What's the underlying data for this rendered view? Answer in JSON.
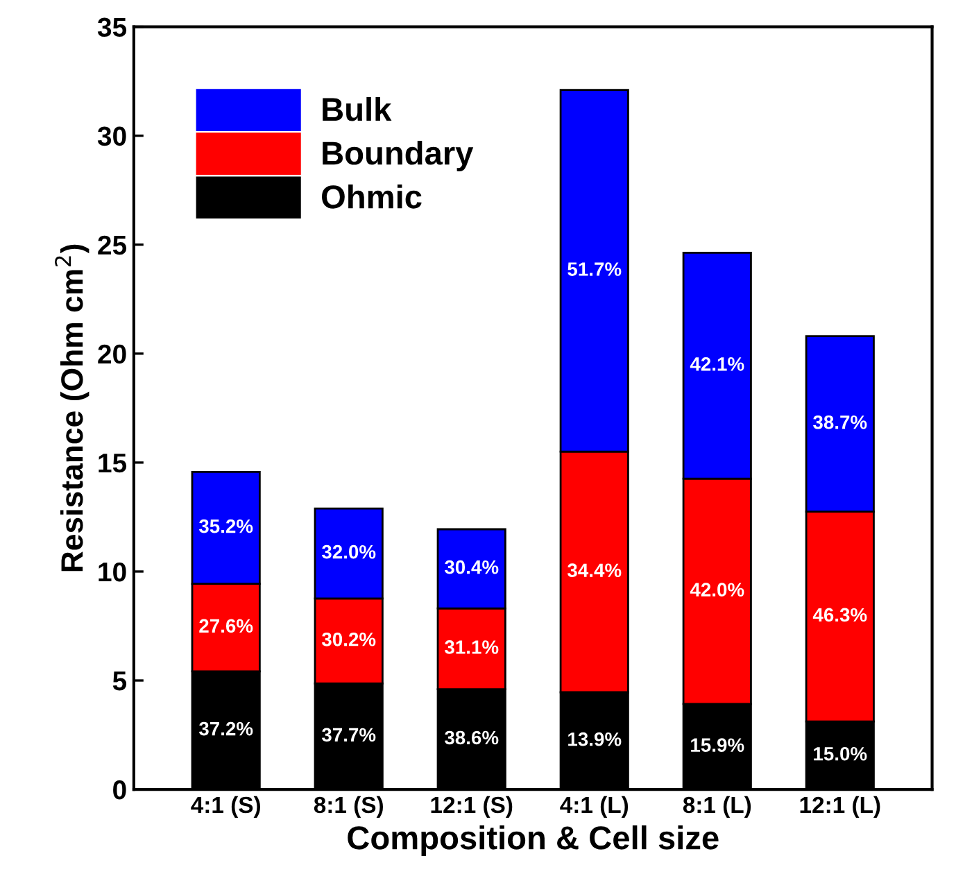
{
  "chart_data": {
    "type": "bar",
    "stacked": true,
    "xlabel": "Composition & Cell size",
    "ylabel": "Resistance (Ohm cm$^{2}$)",
    "categories": [
      "4:1 (S)",
      "8:1 (S)",
      "12:1 (S)",
      "4:1 (L)",
      "8:1 (L)",
      "12:1 (L)"
    ],
    "series": [
      {
        "name": "Ohmic",
        "color": "#000000",
        "values": [
          5.42,
          4.86,
          4.6,
          4.46,
          3.92,
          3.12
        ]
      },
      {
        "name": "Boundary",
        "color": "#ff0000",
        "values": [
          4.02,
          3.9,
          3.71,
          11.04,
          10.34,
          9.63
        ]
      },
      {
        "name": "Bulk",
        "color": "#0000ff",
        "values": [
          5.13,
          4.13,
          3.63,
          16.6,
          10.37,
          8.05
        ]
      }
    ],
    "annotations": [
      "37.2%",
      "37.7%",
      "38.6%",
      "13.9%",
      "15.9%",
      "15.0%",
      "27.6%",
      "30.2%",
      "31.1%",
      "34.4%",
      "42.0%",
      "46.3%",
      "35.2%",
      "32.0%",
      "30.4%",
      "51.7%",
      "42.1%",
      "38.7%"
    ],
    "ylim": [
      0,
      35
    ],
    "yticks": [
      0,
      5,
      10,
      15,
      20,
      25,
      30,
      35
    ],
    "legend": "top left",
    "grid": false
  }
}
